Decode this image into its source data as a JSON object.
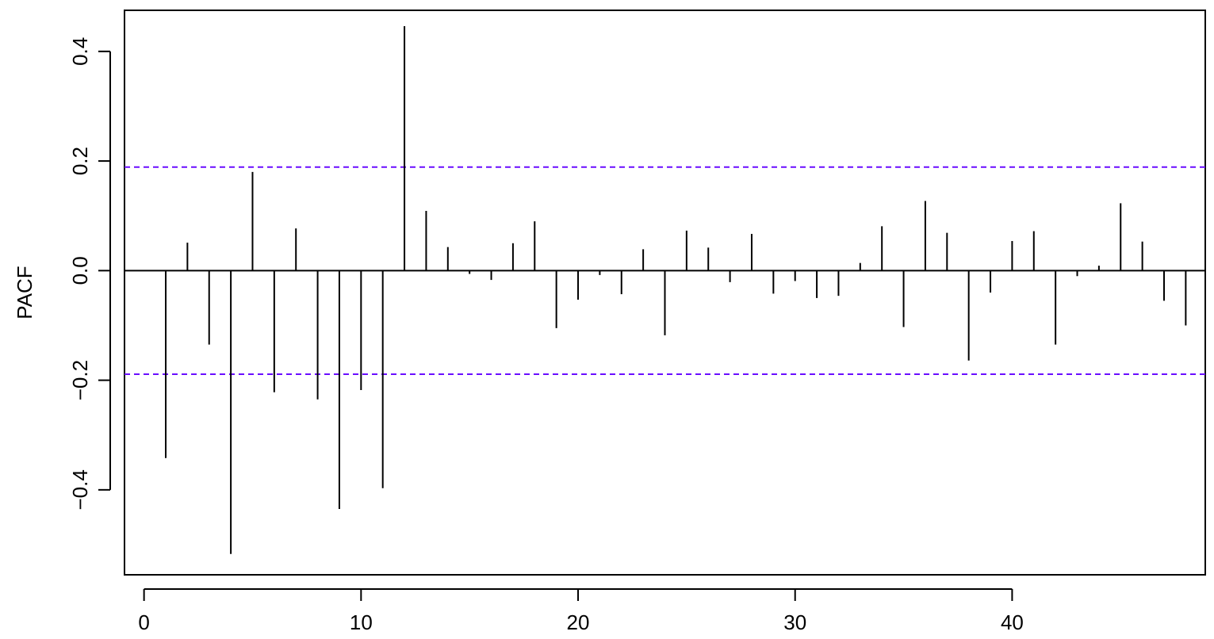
{
  "chart_data": {
    "type": "bar",
    "subtype": "pacf-spikes",
    "title": "",
    "xlabel": "",
    "ylabel": "PACF",
    "xlim": [
      -0.9,
      48.9
    ],
    "ylim": [
      -0.555,
      0.475
    ],
    "x_ticks": [
      0,
      10,
      20,
      30,
      40
    ],
    "x_tick_labels": [
      "0",
      "10",
      "20",
      "30",
      "40"
    ],
    "y_ticks": [
      -0.4,
      -0.2,
      0.0,
      0.2,
      0.4
    ],
    "y_tick_labels": [
      "−0.4",
      "−0.2",
      "0.0",
      "0.2",
      "0.4"
    ],
    "grid": false,
    "legend": "none",
    "lags": [
      1,
      2,
      3,
      4,
      5,
      6,
      7,
      8,
      9,
      10,
      11,
      12,
      13,
      14,
      15,
      16,
      17,
      18,
      19,
      20,
      21,
      22,
      23,
      24,
      25,
      26,
      27,
      28,
      29,
      30,
      31,
      32,
      33,
      34,
      35,
      36,
      37,
      38,
      39,
      40,
      41,
      42,
      43,
      44,
      45,
      46,
      47,
      48
    ],
    "values": [
      -0.342,
      0.051,
      -0.135,
      -0.517,
      0.18,
      -0.222,
      0.077,
      -0.235,
      -0.435,
      -0.218,
      -0.397,
      0.446,
      0.109,
      0.043,
      -0.006,
      -0.017,
      0.05,
      0.09,
      -0.105,
      -0.053,
      -0.008,
      -0.043,
      0.039,
      -0.118,
      0.073,
      0.042,
      -0.021,
      0.067,
      -0.042,
      -0.019,
      -0.05,
      -0.046,
      0.014,
      0.081,
      -0.103,
      0.127,
      0.069,
      -0.164,
      -0.04,
      0.054,
      0.072,
      -0.135,
      -0.01,
      0.009,
      0.123,
      0.053,
      -0.055,
      -0.1
    ],
    "confidence_bound": 0.189,
    "colors": {
      "spike": "#000000",
      "zero_line": "#000000",
      "confidence_line": "#6a0dff",
      "frame": "#000000"
    }
  }
}
